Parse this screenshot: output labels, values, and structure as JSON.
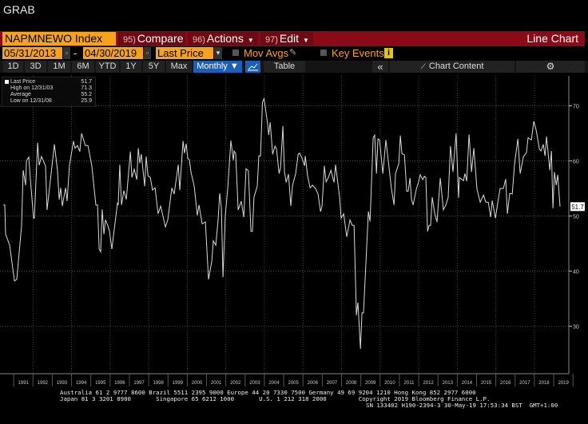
{
  "window_title": "GRAB",
  "toolbar": {
    "ticker": "NAPMNEWO Index",
    "compare": {
      "num": "95)",
      "label": "Compare"
    },
    "actions": {
      "num": "96)",
      "label": "Actions"
    },
    "edit": {
      "num": "97)",
      "label": "Edit"
    },
    "chart_type": "Line Chart"
  },
  "range": {
    "start_date": "05/31/2013",
    "separator": "-",
    "end_date": "04/30/2019",
    "field": "Last Price",
    "mov_avgs": "Mov Avgs",
    "key_events": "Key Events",
    "info_icon": "i"
  },
  "periods": [
    "1D",
    "3D",
    "1M",
    "6M",
    "YTD",
    "1Y",
    "5Y",
    "Max"
  ],
  "frequency": "Monthly ▼",
  "table_label": "Table",
  "collapse_label": "«",
  "chart_content_label": "Chart Content",
  "legend": [
    {
      "label": "Last Price",
      "value": "51.7"
    },
    {
      "label": "High on 12/31/03",
      "value": "71.3"
    },
    {
      "label": "Average",
      "value": "55.2"
    },
    {
      "label": "Low on 12/31/08",
      "value": "25.9"
    }
  ],
  "last_price_tag": "51.7",
  "colors": {
    "accent": "#f7a21b",
    "bar": "#8a0a17",
    "line": "#d9d9d9",
    "monthly": "#1c5fb5"
  },
  "footer": {
    "line1": "Australia 61 2 9777 8600 Brazil 5511 2395 9000 Europe 44 20 7330 7500 Germany 49 69 9204 1210 Hong Kong 852 2977 6000",
    "line2": "Japan 81 3 3201 8900       Singapore 65 6212 1000       U.S. 1 212 318 2000         Copyright 2019 Bloomberg Finance L.P.",
    "line3": "SN 133402 H190-2394-3 30-May-19 17:53:34 BST  GMT+1:00"
  },
  "chart_data": {
    "type": "line",
    "title": "NAPMNEWO Index",
    "series_name": "Last Price",
    "ylim": [
      20,
      75
    ],
    "yticks": [
      "70",
      "60",
      "50",
      "40",
      "30"
    ],
    "xticks": [
      "1991",
      "1992",
      "1993",
      "1994",
      "1995",
      "1996",
      "1997",
      "1998",
      "1999",
      "2000",
      "2001",
      "2002",
      "2003",
      "2004",
      "2005",
      "2006",
      "2007",
      "2008",
      "2009",
      "2010",
      "2011",
      "2012",
      "2013",
      "2014",
      "2015",
      "2016",
      "2017",
      "2018",
      "2019"
    ],
    "grid": true,
    "points": [
      [
        1990.46,
        52
      ],
      [
        1990.54,
        52
      ],
      [
        1990.58,
        46.7
      ],
      [
        1990.79,
        44.7
      ],
      [
        1991.04,
        38.2
      ],
      [
        1991.16,
        38.5
      ],
      [
        1991.41,
        48.2
      ],
      [
        1991.49,
        58.3
      ],
      [
        1991.62,
        55.6
      ],
      [
        1991.66,
        60
      ],
      [
        1991.78,
        60.7
      ],
      [
        1991.86,
        56.9
      ],
      [
        1992.03,
        49.6
      ],
      [
        1992.07,
        49.6
      ],
      [
        1992.24,
        63.3
      ],
      [
        1992.32,
        59.2
      ],
      [
        1992.44,
        60.8
      ],
      [
        1992.65,
        59.1
      ],
      [
        1992.73,
        51.1
      ],
      [
        1993.11,
        63
      ],
      [
        1993.27,
        58.3
      ],
      [
        1993.36,
        53
      ],
      [
        1993.44,
        55.1
      ],
      [
        1993.52,
        51.8
      ],
      [
        1993.69,
        55.1
      ],
      [
        1993.77,
        52.7
      ],
      [
        1993.89,
        59.1
      ],
      [
        1994.1,
        63.6
      ],
      [
        1994.18,
        62.3
      ],
      [
        1994.31,
        62.8
      ],
      [
        1994.43,
        61.7
      ],
      [
        1994.52,
        65
      ],
      [
        1994.72,
        62.8
      ],
      [
        1994.85,
        62.8
      ],
      [
        1995.05,
        59.1
      ],
      [
        1995.26,
        52
      ],
      [
        1995.35,
        52
      ],
      [
        1995.43,
        44
      ],
      [
        1995.51,
        43.5
      ],
      [
        1995.59,
        51.2
      ],
      [
        1995.68,
        46.7
      ],
      [
        1995.76,
        49.3
      ],
      [
        1995.88,
        48.3
      ],
      [
        1995.97,
        47.2
      ],
      [
        1996.09,
        44
      ],
      [
        1996.38,
        52.3
      ],
      [
        1996.42,
        52
      ],
      [
        1996.5,
        59.3
      ],
      [
        1996.59,
        52
      ],
      [
        1996.71,
        54.6
      ],
      [
        1996.84,
        53
      ],
      [
        1997.05,
        61.7
      ],
      [
        1997.13,
        57
      ],
      [
        1997.25,
        58.5
      ],
      [
        1997.38,
        56.6
      ],
      [
        1997.46,
        62.3
      ],
      [
        1997.54,
        59.6
      ],
      [
        1997.62,
        61.2
      ],
      [
        1997.79,
        55.4
      ],
      [
        1997.87,
        60.8
      ],
      [
        1997.96,
        57.3
      ],
      [
        1998.08,
        57
      ],
      [
        1998.2,
        54.7
      ],
      [
        1998.33,
        55.1
      ],
      [
        1998.49,
        50.4
      ],
      [
        1998.62,
        51.8
      ],
      [
        1998.87,
        48
      ],
      [
        1998.99,
        49.3
      ],
      [
        1999.2,
        55.1
      ],
      [
        1999.32,
        54
      ],
      [
        1999.53,
        59.3
      ],
      [
        1999.61,
        54.7
      ],
      [
        1999.78,
        63.6
      ],
      [
        1999.86,
        61.4
      ],
      [
        1999.94,
        63.1
      ],
      [
        2000.03,
        60.4
      ],
      [
        2000.11,
        60.2
      ],
      [
        2000.19,
        58
      ],
      [
        2000.36,
        55.4
      ],
      [
        2000.52,
        50.1
      ],
      [
        2000.61,
        52
      ],
      [
        2000.77,
        48.6
      ],
      [
        2000.94,
        48.9
      ],
      [
        2001.1,
        38.5
      ],
      [
        2001.27,
        41.8
      ],
      [
        2001.35,
        45.5
      ],
      [
        2001.48,
        44.7
      ],
      [
        2001.6,
        49.3
      ],
      [
        2001.68,
        54.1
      ],
      [
        2001.77,
        51.5
      ],
      [
        2001.85,
        38.9
      ],
      [
        2001.97,
        50.1
      ],
      [
        2002.1,
        55.1
      ],
      [
        2002.26,
        63.7
      ],
      [
        2002.39,
        60.1
      ],
      [
        2002.43,
        61.8
      ],
      [
        2002.51,
        61.3
      ],
      [
        2002.64,
        51.1
      ],
      [
        2002.8,
        52.7
      ],
      [
        2002.93,
        49.8
      ],
      [
        2003.05,
        58.6
      ],
      [
        2003.17,
        58.2
      ],
      [
        2003.3,
        47.2
      ],
      [
        2003.38,
        47.2
      ],
      [
        2003.46,
        53.4
      ],
      [
        2003.63,
        55.4
      ],
      [
        2003.71,
        60.9
      ],
      [
        2003.8,
        60.9
      ],
      [
        2003.9,
        70.6
      ],
      [
        2003.98,
        71.3
      ],
      [
        2004.06,
        69.4
      ],
      [
        2004.18,
        66.3
      ],
      [
        2004.22,
        64.7
      ],
      [
        2004.3,
        67
      ],
      [
        2004.43,
        61.2
      ],
      [
        2004.55,
        62.7
      ],
      [
        2004.63,
        62.1
      ],
      [
        2004.76,
        57.7
      ],
      [
        2004.84,
        58.8
      ],
      [
        2004.96,
        66.3
      ],
      [
        2005.04,
        58
      ],
      [
        2005.13,
        56.1
      ],
      [
        2005.25,
        57.6
      ],
      [
        2005.37,
        51.8
      ],
      [
        2005.46,
        55.6
      ],
      [
        2005.62,
        57.7
      ],
      [
        2005.75,
        61.2
      ],
      [
        2005.83,
        61.4
      ],
      [
        2005.95,
        60.5
      ],
      [
        2006.08,
        59.1
      ],
      [
        2006.12,
        60.9
      ],
      [
        2006.24,
        57.3
      ],
      [
        2006.37,
        55.1
      ],
      [
        2006.49,
        55.6
      ],
      [
        2006.66,
        54.9
      ],
      [
        2006.78,
        54
      ],
      [
        2006.91,
        50.8
      ],
      [
        2006.99,
        51.8
      ],
      [
        2007.11,
        59.1
      ],
      [
        2007.2,
        56.2
      ],
      [
        2007.32,
        57
      ],
      [
        2007.45,
        58.3
      ],
      [
        2007.61,
        56.1
      ],
      [
        2007.69,
        59.3
      ],
      [
        2007.9,
        53.4
      ],
      [
        2007.98,
        49.6
      ],
      [
        2008.11,
        50.4
      ],
      [
        2008.27,
        46.2
      ],
      [
        2008.44,
        49.3
      ],
      [
        2008.56,
        48.3
      ],
      [
        2008.65,
        48.3
      ],
      [
        2008.77,
        32
      ],
      [
        2008.85,
        34.3
      ],
      [
        2008.98,
        25.9
      ],
      [
        2009.06,
        32.4
      ],
      [
        2009.14,
        32.4
      ],
      [
        2009.39,
        50.8
      ],
      [
        2009.48,
        49
      ],
      [
        2009.64,
        64.2
      ],
      [
        2009.72,
        64.7
      ],
      [
        2009.81,
        57.7
      ],
      [
        2009.89,
        64
      ],
      [
        2009.97,
        63.8
      ],
      [
        2010.14,
        57.7
      ],
      [
        2010.3,
        63.8
      ],
      [
        2010.43,
        59.8
      ],
      [
        2010.59,
        54.9
      ],
      [
        2010.72,
        52
      ],
      [
        2010.8,
        57.7
      ],
      [
        2010.97,
        59.5
      ],
      [
        2011.05,
        64.6
      ],
      [
        2011.13,
        61.3
      ],
      [
        2011.26,
        61.1
      ],
      [
        2011.38,
        54.5
      ],
      [
        2011.46,
        54.5
      ],
      [
        2011.55,
        56.9
      ],
      [
        2011.63,
        53
      ],
      [
        2011.71,
        52
      ],
      [
        2011.88,
        54.9
      ],
      [
        2012.0,
        56.3
      ],
      [
        2012.08,
        57.5
      ],
      [
        2012.21,
        56.6
      ],
      [
        2012.29,
        57.2
      ],
      [
        2012.37,
        57
      ],
      [
        2012.46,
        47.2
      ],
      [
        2012.54,
        48.3
      ],
      [
        2012.62,
        48.3
      ],
      [
        2012.7,
        53.4
      ],
      [
        2012.83,
        50.5
      ],
      [
        2012.95,
        48.9
      ],
      [
        2013.12,
        56.9
      ],
      [
        2013.28,
        51.1
      ],
      [
        2013.41,
        52
      ],
      [
        2013.53,
        53.4
      ],
      [
        2013.65,
        62.7
      ],
      [
        2013.78,
        58
      ],
      [
        2013.94,
        65
      ],
      [
        2014.07,
        53.3
      ],
      [
        2014.11,
        57
      ],
      [
        2014.32,
        56.4
      ],
      [
        2014.4,
        57.7
      ],
      [
        2014.49,
        56.3
      ],
      [
        2014.61,
        64.8
      ],
      [
        2014.74,
        58
      ],
      [
        2014.86,
        62.3
      ],
      [
        2015.02,
        54.9
      ],
      [
        2015.19,
        52.5
      ],
      [
        2015.36,
        53.8
      ],
      [
        2015.48,
        52.5
      ],
      [
        2015.61,
        52.5
      ],
      [
        2015.73,
        49.8
      ],
      [
        2015.81,
        52.8
      ],
      [
        2015.98,
        49.6
      ],
      [
        2016.1,
        52.5
      ],
      [
        2016.22,
        55
      ],
      [
        2016.39,
        55
      ],
      [
        2016.51,
        56.7
      ],
      [
        2016.6,
        50.4
      ],
      [
        2016.72,
        54.1
      ],
      [
        2016.85,
        54
      ],
      [
        2016.97,
        59.5
      ],
      [
        2017.14,
        64
      ],
      [
        2017.26,
        57.7
      ],
      [
        2017.43,
        60.8
      ],
      [
        2017.59,
        61.5
      ],
      [
        2017.67,
        64.2
      ],
      [
        2017.84,
        63.8
      ],
      [
        2017.97,
        67.2
      ],
      [
        2018.09,
        65.6
      ],
      [
        2018.26,
        62.1
      ],
      [
        2018.34,
        61.8
      ],
      [
        2018.46,
        63
      ],
      [
        2018.55,
        60.9
      ],
      [
        2018.63,
        64.4
      ],
      [
        2018.8,
        58.3
      ],
      [
        2018.88,
        61.8
      ],
      [
        2018.96,
        51.4
      ],
      [
        2019.04,
        58
      ],
      [
        2019.13,
        55.6
      ],
      [
        2019.21,
        57.5
      ],
      [
        2019.33,
        51.7
      ]
    ]
  }
}
